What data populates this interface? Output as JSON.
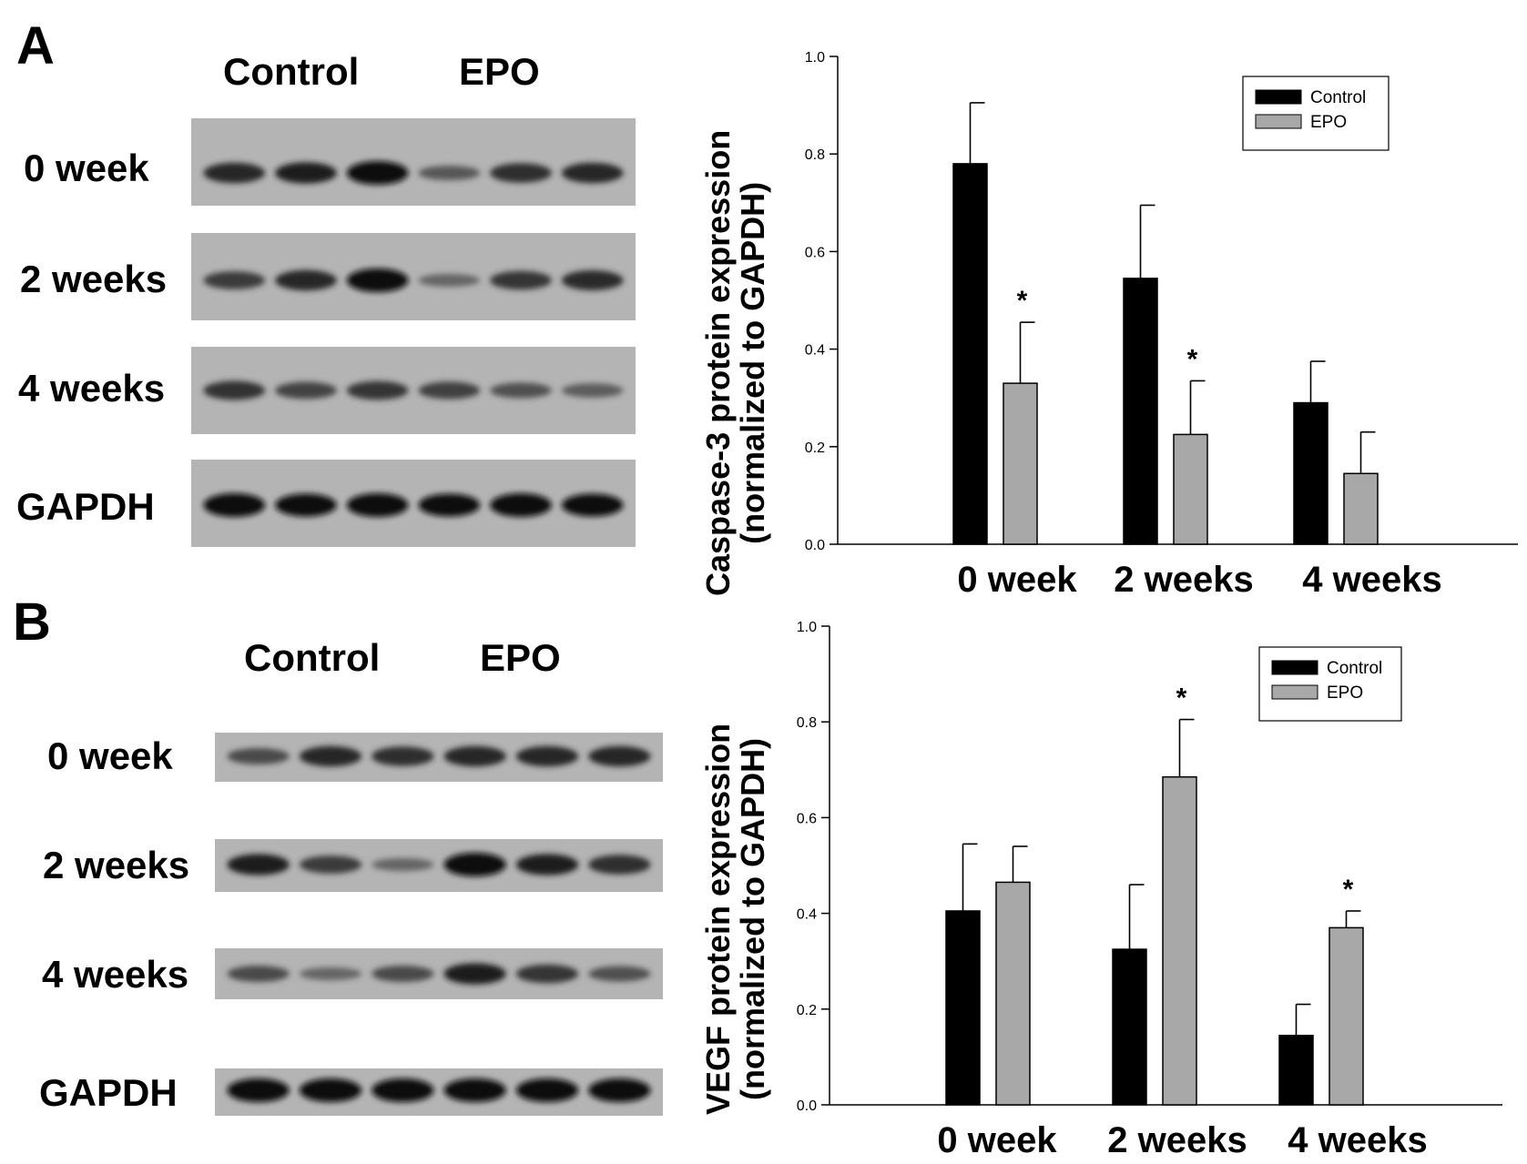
{
  "panels": [
    {
      "letter": "A",
      "blot": {
        "headers": [
          "Control",
          "EPO"
        ],
        "rows": [
          {
            "label": "0 week",
            "intensity": [
              0.8,
              0.85,
              1.0,
              0.45,
              0.75,
              0.8
            ]
          },
          {
            "label": "2 weeks",
            "intensity": [
              0.65,
              0.8,
              1.0,
              0.35,
              0.7,
              0.78
            ]
          },
          {
            "label": "4 weeks",
            "intensity": [
              0.72,
              0.6,
              0.7,
              0.62,
              0.5,
              0.42
            ]
          },
          {
            "label": "GAPDH",
            "intensity": [
              1.0,
              0.95,
              1.0,
              0.95,
              1.0,
              0.95
            ]
          }
        ]
      }
    },
    {
      "letter": "B",
      "blot": {
        "headers": [
          "Control",
          "EPO"
        ],
        "rows": [
          {
            "label": "0 week",
            "intensity": [
              0.55,
              0.8,
              0.75,
              0.8,
              0.8,
              0.8
            ]
          },
          {
            "label": "2 weeks",
            "intensity": [
              0.85,
              0.65,
              0.35,
              1.0,
              0.85,
              0.75
            ]
          },
          {
            "label": "4 weeks",
            "intensity": [
              0.55,
              0.35,
              0.55,
              0.85,
              0.7,
              0.5
            ]
          },
          {
            "label": "GAPDH",
            "intensity": [
              1.0,
              1.0,
              1.0,
              1.0,
              1.0,
              1.0
            ]
          }
        ]
      }
    }
  ],
  "chart_data": [
    {
      "type": "bar",
      "ylabel": "Caspase-3 protein expression (normalized to GAPDH)",
      "ylabel_lines": [
        "Caspase-3 protein expression",
        "(normalized to GAPDH)"
      ],
      "categories": [
        "0 week",
        "2 weeks",
        "4 weeks"
      ],
      "ylim": [
        0,
        1.0
      ],
      "yticks": [
        "0.0",
        "0.2",
        "0.4",
        "0.6",
        "0.8",
        "1.0"
      ],
      "legend_placement": "top-right",
      "series": [
        {
          "name": "Control",
          "color": "#000000",
          "values": [
            0.78,
            0.545,
            0.29
          ],
          "errors": [
            0.125,
            0.15,
            0.085
          ]
        },
        {
          "name": "EPO",
          "color": "#a8a8a8",
          "values": [
            0.33,
            0.225,
            0.145
          ],
          "errors": [
            0.125,
            0.11,
            0.085
          ]
        }
      ],
      "significance": [
        [
          "",
          "*"
        ],
        [
          "",
          "*"
        ],
        [
          "",
          ""
        ]
      ]
    },
    {
      "type": "bar",
      "ylabel": "VEGF protein expression (normalized to GAPDH)",
      "ylabel_lines": [
        "VEGF protein expression",
        "(normalized to GAPDH)"
      ],
      "categories": [
        "0 week",
        "2 weeks",
        "4 weeks"
      ],
      "ylim": [
        0,
        1.0
      ],
      "yticks": [
        "0.0",
        "0.2",
        "0.4",
        "0.6",
        "0.8",
        "1.0"
      ],
      "legend_placement": "top-right",
      "series": [
        {
          "name": "Control",
          "color": "#000000",
          "values": [
            0.405,
            0.325,
            0.145
          ],
          "errors": [
            0.14,
            0.135,
            0.065
          ]
        },
        {
          "name": "EPO",
          "color": "#a8a8a8",
          "values": [
            0.465,
            0.685,
            0.37
          ],
          "errors": [
            0.075,
            0.12,
            0.035
          ]
        }
      ],
      "significance": [
        [
          "",
          ""
        ],
        [
          "",
          "*"
        ],
        [
          "",
          "*"
        ]
      ]
    }
  ]
}
